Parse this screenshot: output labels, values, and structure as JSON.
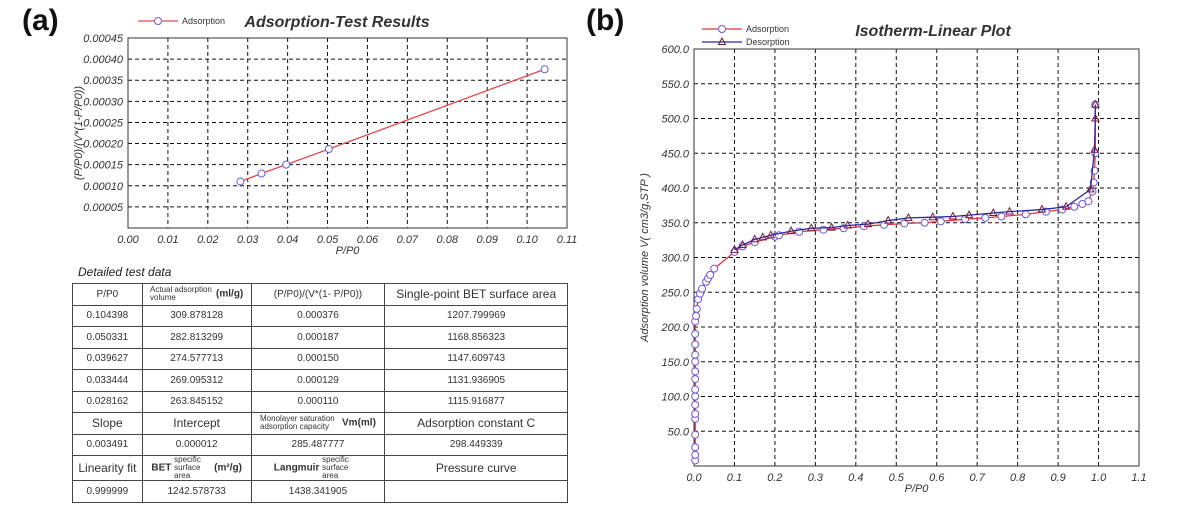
{
  "panels": {
    "a": "(a)",
    "b": "(b)"
  },
  "chart_data": [
    {
      "type": "scatter",
      "title": "Adsorption-Test Results",
      "xlabel": "P/P0",
      "ylabel": "(P/P0)/(V*(1-P/P0))",
      "xlim": [
        0,
        0.11
      ],
      "ylim": [
        0,
        0.00045
      ],
      "xticks": [
        "0.00",
        "0.01",
        "0.02",
        "0.03",
        "0.04",
        "0.05",
        "0.06",
        "0.07",
        "0.08",
        "0.09",
        "0.10",
        "0.11"
      ],
      "yticks": [
        "0.00005",
        "0.00010",
        "0.00015",
        "0.00020",
        "0.00025",
        "0.00030",
        "0.00035",
        "0.00040",
        "0.00045"
      ],
      "legend": "top-left",
      "grid": true,
      "series": [
        {
          "name": "Adsorption",
          "color": "#e8474a",
          "marker": "#6a5ae0",
          "x": [
            0.028162,
            0.033444,
            0.039627,
            0.050331,
            0.104398
          ],
          "y": [
            0.00011,
            0.000129,
            0.00015,
            0.000187,
            0.000376
          ]
        }
      ]
    },
    {
      "type": "line",
      "title": "Isotherm-Linear Plot",
      "xlabel": "P/P0",
      "ylabel": "Adsorption volume  V( cm3/g,STP )",
      "xlim": [
        0,
        1.1
      ],
      "ylim": [
        0,
        600
      ],
      "xticks": [
        "0.0",
        "0.1",
        "0.2",
        "0.3",
        "0.4",
        "0.5",
        "0.6",
        "0.7",
        "0.8",
        "0.9",
        "1.0",
        "1.1"
      ],
      "yticks": [
        "50.0",
        "100.0",
        "150.0",
        "200.0",
        "250.0",
        "300.0",
        "350.0",
        "400.0",
        "450.0",
        "500.0",
        "550.0",
        "600.0"
      ],
      "legend": "top-left",
      "grid": true,
      "series": [
        {
          "name": "Adsorption",
          "color": "#e8303a",
          "marker": "circle",
          "x": [
            0.003,
            0.003,
            0.003,
            0.003,
            0.003,
            0.003,
            0.003,
            0.003,
            0.003,
            0.003,
            0.003,
            0.003,
            0.003,
            0.003,
            0.003,
            0.003,
            0.005,
            0.007,
            0.01,
            0.015,
            0.02,
            0.03,
            0.035,
            0.04,
            0.05,
            0.1,
            0.12,
            0.15,
            0.2,
            0.21,
            0.26,
            0.32,
            0.37,
            0.42,
            0.47,
            0.52,
            0.57,
            0.61,
            0.67,
            0.72,
            0.76,
            0.82,
            0.87,
            0.91,
            0.94,
            0.96,
            0.975,
            0.985,
            0.988,
            0.99,
            0.992,
            0.992
          ],
          "y": [
            8,
            16,
            27,
            45,
            68,
            75,
            88,
            100,
            110,
            125,
            136,
            150,
            160,
            175,
            190,
            208,
            216,
            226,
            240,
            248,
            255,
            265,
            270,
            275,
            284,
            308,
            316,
            322,
            330,
            332,
            337,
            340,
            342,
            345,
            347,
            349,
            350,
            352,
            355,
            357,
            359,
            362,
            366,
            369,
            373,
            377,
            381,
            395,
            408,
            425,
            450,
            520
          ]
        },
        {
          "name": "Desorption",
          "color": "#2a2aa0",
          "marker": "triangle",
          "x": [
            0.992,
            0.992,
            0.99,
            0.98,
            0.92,
            0.86,
            0.78,
            0.74,
            0.68,
            0.64,
            0.59,
            0.53,
            0.48,
            0.43,
            0.38,
            0.34,
            0.29,
            0.24,
            0.19,
            0.17,
            0.15,
            0.12,
            0.1
          ],
          "y": [
            520,
            500,
            455,
            398,
            373,
            369,
            366,
            364,
            361,
            359,
            358,
            357,
            353,
            348,
            346,
            343,
            342,
            338,
            332,
            329,
            326,
            318,
            311
          ]
        }
      ]
    }
  ],
  "table": {
    "caption": "Detailed test data",
    "header": [
      "P/P0",
      "Actual adsorption volume",
      "(ml/g)",
      "(P/P0)/(V*(1- P/P0))",
      "Single-point BET surface area"
    ],
    "rows": [
      [
        "0.104398",
        "309.878128",
        "0.000376",
        "1207.799969"
      ],
      [
        "0.050331",
        "282.813299",
        "0.000187",
        "1168.856323"
      ],
      [
        "0.039627",
        "274.577713",
        "0.000150",
        "1147.609743"
      ],
      [
        "0.033444",
        "269.095312",
        "0.000129",
        "1131.936905"
      ],
      [
        "0.028162",
        "263.845152",
        "0.000110",
        "1115.916877"
      ]
    ],
    "row6": [
      "Slope",
      "Intercept",
      "Monolayer saturation adsorption capacity",
      "Vm(ml)",
      "Adsorption constant C"
    ],
    "row7": [
      "0.003491",
      "0.000012",
      "285.487777",
      "298.449339"
    ],
    "row8": [
      "Linearity fit",
      "BET",
      "specific surface area",
      "(m²/g)",
      "Langmuir",
      "specific surface area",
      "Pressure curve"
    ],
    "row9": [
      "0.999999",
      "1242.578733",
      "1438.341905",
      ""
    ]
  }
}
